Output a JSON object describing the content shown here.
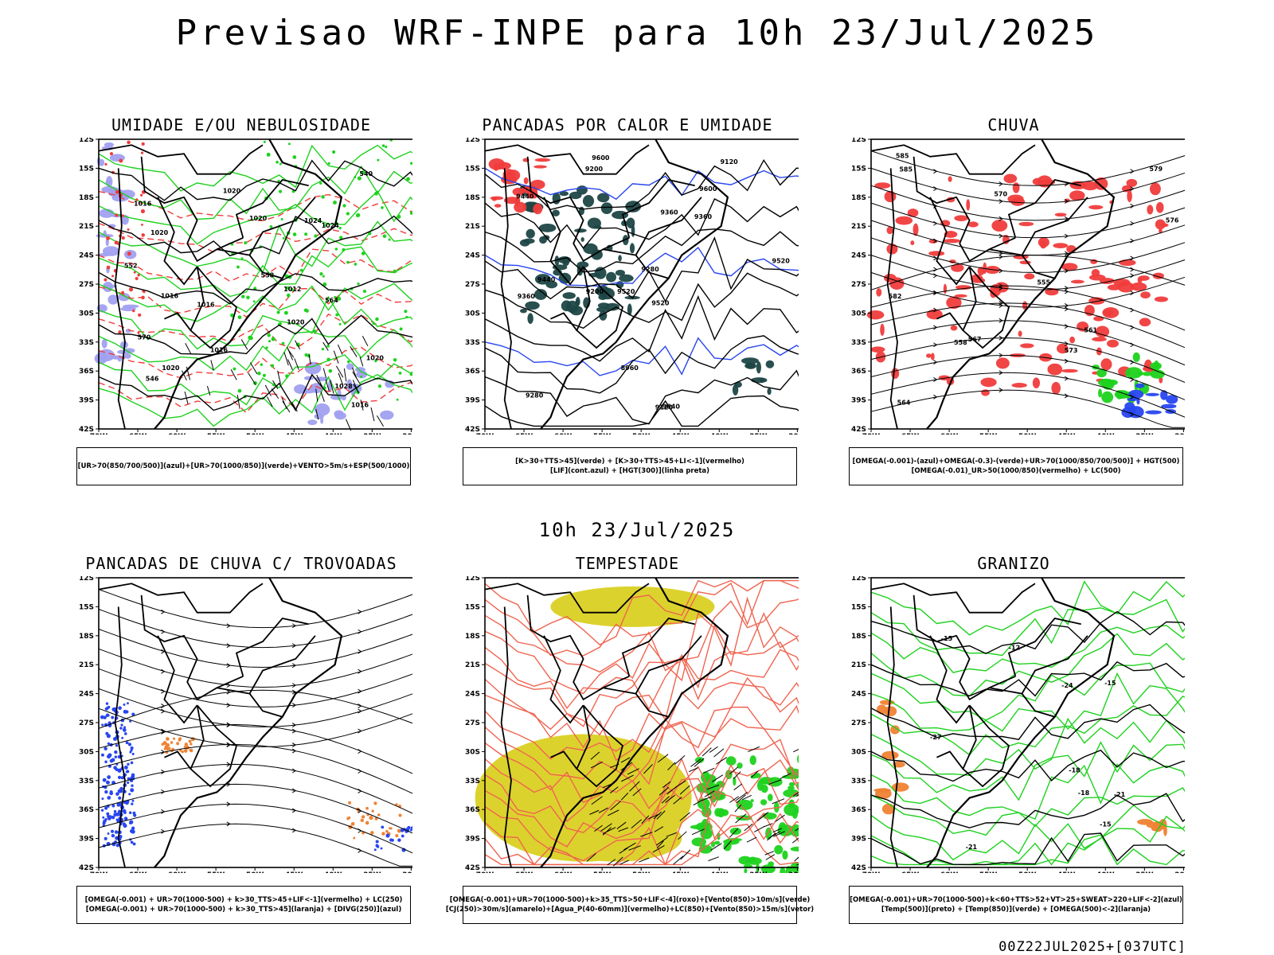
{
  "title": "Previsao WRF-INPE  para 10h 23/Jul/2025",
  "mid_title": "10h 23/Jul/2025",
  "footer": "00Z22JUL2025+[037UTC]",
  "lat_ticks": [
    "12S",
    "15S",
    "18S",
    "21S",
    "24S",
    "27S",
    "30S",
    "33S",
    "36S",
    "39S",
    "42S"
  ],
  "lon_ticks": [
    "70W",
    "65W",
    "60W",
    "55W",
    "50W",
    "45W",
    "40W",
    "35W",
    "30W"
  ],
  "panels": [
    {
      "title": "UMIDADE E/OU NEBULOSIDADE",
      "legend": [
        "[UR>70(850/700/500)](azul)+[UR>70(1000/850)](verde)+VENTO>5m/s+ESP(500/1000)"
      ],
      "labels": [
        "1016",
        "1016",
        "1020",
        "1016",
        "1020",
        "1020",
        "1020",
        "1016",
        "1024",
        "1020",
        "1024",
        "1028",
        "1016",
        "1020",
        "1012",
        "570",
        "564",
        "558",
        "552",
        "546",
        "540"
      ]
    },
    {
      "title": "PANCADAS POR CALOR E UMIDADE",
      "legend": [
        "[K>30+TTS>45](verde) + [K>30+TTS>45+LI<-1](vermelho)",
        "[LIF](cont.azul) + [HGT(300)](linha preta)"
      ],
      "labels": [
        "9600",
        "9600",
        "9520",
        "9520",
        "9520",
        "9440",
        "9440",
        "9360",
        "9360",
        "9360",
        "9280",
        "9280",
        "9200",
        "9200",
        "9120",
        "9040",
        "8960",
        "9120"
      ]
    },
    {
      "title": "CHUVA",
      "legend": [
        "[OMEGA(-0.001)-(azul)+OMEGA(-0.3)-(verde)+UR>70(1000/850/700/500)] + HGT(500)",
        "[OMEGA(-0.01)_UR>50(1000/850)(vermelho) + LC(500)"
      ],
      "labels": [
        "585",
        "585",
        "582",
        "579",
        "576",
        "573",
        "570",
        "567",
        "564",
        "561",
        "558",
        "555"
      ]
    },
    {
      "title": "PANCADAS DE CHUVA C/ TROVOADAS",
      "legend": [
        "[OMEGA(-0.001) + UR>70(1000-500) + k>30_TTS>45+LIF<-1](vermelho) + LC(250)",
        "[OMEGA(-0.001) + UR>70(1000-500) + k>30_TTS>45](laranja) + [DIVG(250)](azul)"
      ],
      "labels": []
    },
    {
      "title": "TEMPESTADE",
      "legend": [
        "[OMEGA(-0.001)+UR>70(1000-500)+k>35_TTS>50+LIF<-4](roxo)+[Vento(850)>10m/s](verde)",
        "[CJ(250)>30m/s](amarelo)+[Agua_P(40-60mm)](vermelho)+LC(850)+[Vento(850)>15m/s](vetor)"
      ],
      "labels": []
    },
    {
      "title": "GRANIZO",
      "legend": [
        "[OMEGA(-0.001)+UR>70(1000-500)+k<60+TTS>52+VT>25+SWEAT>220+LIF<-2](azul)",
        "[Temp(500)](preto) + [Temp(850)](verde) + [OMEGA(500)<-2](laranja)"
      ],
      "labels": [
        "-12",
        "-15",
        "-15",
        "-18",
        "-15",
        "-18",
        "-21",
        "-21",
        "-24",
        "-27"
      ]
    }
  ],
  "colors": {
    "green": "#1ed21e",
    "red": "#f03c3c",
    "blue": "#2846f0",
    "purple": "#a0a0f0",
    "darkteal": "#1e4646",
    "yellow": "#dcd22d",
    "orange": "#ef8233",
    "lightred": "#f06450"
  }
}
